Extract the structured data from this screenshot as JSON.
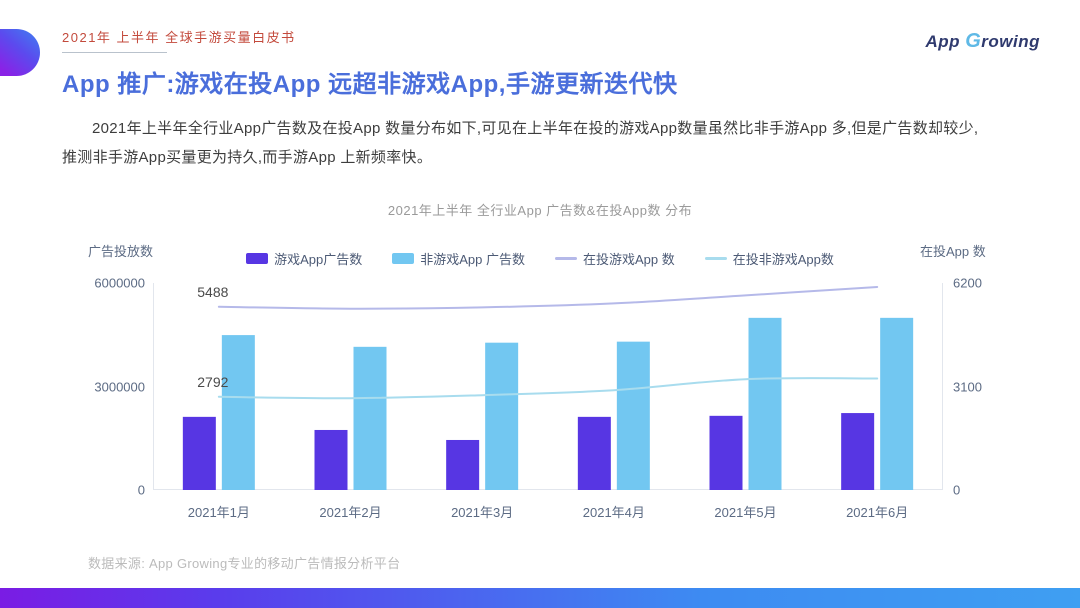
{
  "header": {
    "eyebrow": "2021年 上半年 全球手游买量白皮书",
    "logo": {
      "part_app": "App",
      "part_g": "G",
      "part_rowing": "rowing"
    }
  },
  "main": {
    "title": "App 推广:游戏在投App 远超非游戏App,手游更新迭代快",
    "body": "2021年上半年全行业App广告数及在投App 数量分布如下,可见在上半年在投的游戏App数量虽然比非手游App 多,但是广告数却较少,推测非手游App买量更为持久,而手游App 上新频率快。",
    "source": "数据来源: App Growing专业的移动广告情报分析平台"
  },
  "colors": {
    "accent_blue": "#4a6edb",
    "eyebrow_red": "#c34a3c",
    "bar_game": "#5736e3",
    "bar_nongame": "#72c7f1",
    "line_game": "#b5b9e9",
    "line_nongame": "#a8dcee",
    "axis_line": "#e2e6ed"
  },
  "chart_data": {
    "type": "bar",
    "title": "2021年上半年 全行业App 广告数&在投App数 分布",
    "categories": [
      "2021年1月",
      "2021年2月",
      "2021年3月",
      "2021年4月",
      "2021年5月",
      "2021年6月"
    ],
    "series": [
      {
        "name": "游戏App广告数",
        "kind": "bar",
        "axis": "left",
        "color": "#5736e3",
        "values": [
          2120000,
          1740000,
          1450000,
          2120000,
          2150000,
          2230000
        ]
      },
      {
        "name": "非游戏App 广告数",
        "kind": "bar",
        "axis": "left",
        "color": "#72c7f1",
        "values": [
          4490000,
          4150000,
          4270000,
          4300000,
          4990000,
          4990000
        ]
      },
      {
        "name": "在投游戏App 数",
        "kind": "line",
        "axis": "right",
        "color": "#b5b9e9",
        "values": [
          5488,
          5430,
          5470,
          5590,
          5830,
          6080
        ]
      },
      {
        "name": "在投非游戏App数",
        "kind": "line",
        "axis": "right",
        "color": "#a8dcee",
        "values": [
          2792,
          2750,
          2840,
          2990,
          3320,
          3340
        ]
      }
    ],
    "left_axis": {
      "label": "广告投放数",
      "max": 6000000,
      "ticks": [
        "6000000",
        "3000000",
        "0"
      ]
    },
    "right_axis": {
      "label": "在投App 数",
      "max": 6200,
      "ticks": [
        "6200",
        "3100",
        "0"
      ]
    },
    "annotations": [
      {
        "text": "5488",
        "series": 2,
        "point": 0
      },
      {
        "text": "2792",
        "series": 3,
        "point": 0
      }
    ],
    "legend_position": "top-center",
    "grid": false
  }
}
